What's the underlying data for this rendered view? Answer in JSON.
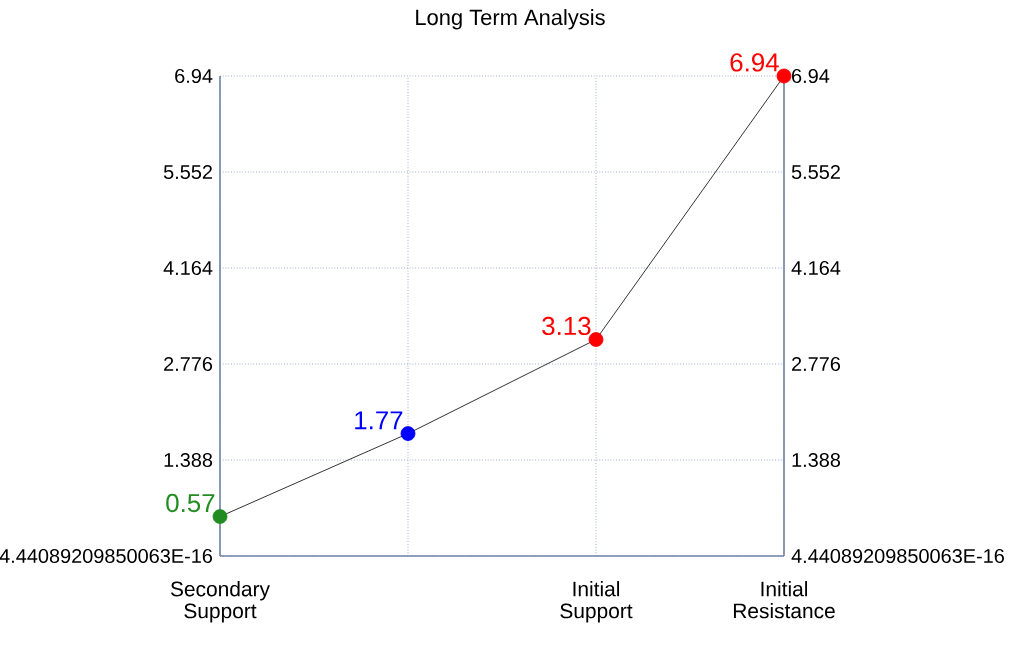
{
  "chart_data": {
    "type": "line",
    "title": "Long Term Analysis",
    "categories": [
      "Secondary Support",
      null,
      "Initial Support",
      "Initial Resistance"
    ],
    "series": [
      {
        "color": "#000000",
        "colors": [
          "#228b22",
          "#0000ff",
          "#ff0000",
          "#ff0000"
        ],
        "values": [
          0.57,
          1.77,
          3.13,
          6.94
        ]
      }
    ],
    "ylim": [
      0,
      6.94
    ],
    "yticks": [
      {
        "value": 0,
        "label": "4.44089209850063E-16"
      },
      1.388,
      2.776,
      4.164,
      5.552,
      6.94
    ],
    "y2lim": [
      0,
      6.94
    ],
    "y2ticks": [
      {
        "value": 0,
        "label": "4.44089209850063E-16"
      },
      1.388,
      2.776,
      4.164,
      5.552,
      6.94
    ],
    "data_labels": true,
    "grid": true,
    "marker": "circle",
    "line_style": "solid"
  }
}
